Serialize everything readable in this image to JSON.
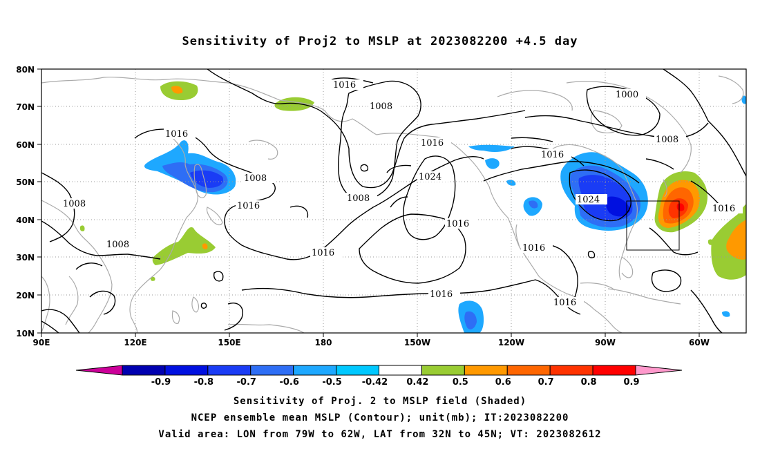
{
  "title": "Sensitivity of Proj2 to MSLP at 2023082200 +4.5 day",
  "footer": {
    "line1": "Sensitivity of Proj. 2 to MSLP field (Shaded)",
    "line2": "NCEP ensemble mean MSLP (Contour); unit(mb); IT:2023082200",
    "line3": "Valid area: LON from 79W to 62W, LAT from 32N to 45N; VT: 2023082612"
  },
  "map": {
    "lat_labels": [
      "80N",
      "70N",
      "60N",
      "50N",
      "40N",
      "30N",
      "20N",
      "10N"
    ],
    "lon_labels": [
      "90E",
      "120E",
      "150E",
      "180",
      "150W",
      "120W",
      "90W",
      "60W"
    ],
    "contour_labels": [
      "1016",
      "1008",
      "1016",
      "1016",
      "1008",
      "1008",
      "1016",
      "1024",
      "1008",
      "1008",
      "1016",
      "1016",
      "1016",
      "1024",
      "1000",
      "1008",
      "1016",
      "1016",
      "1016",
      "1016"
    ],
    "valid_box": {
      "lon": [
        "79W",
        "62W"
      ],
      "lat": [
        "32N",
        "45N"
      ]
    }
  },
  "colorbar": {
    "labels": [
      "-0.9",
      "-0.8",
      "-0.7",
      "-0.6",
      "-0.5",
      "-0.42",
      "0.42",
      "0.5",
      "0.6",
      "0.7",
      "0.8",
      "0.9"
    ],
    "colors": [
      "#0000b0",
      "#0010e0",
      "#1a3cf5",
      "#2e6ef5",
      "#1ea8ff",
      "#00c8ff",
      "#ffffff",
      "#99cc33",
      "#ff9900",
      "#ff6600",
      "#ff3300",
      "#ff0000"
    ],
    "end_low": "#cc0099",
    "end_high": "#ff99cc"
  }
}
